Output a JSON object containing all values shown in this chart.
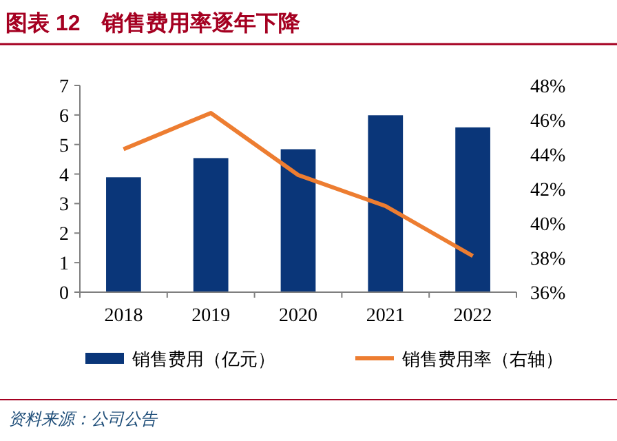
{
  "chart_data": {
    "type": "bar",
    "title": "图表 12　销售费用率逐年下降",
    "categories": [
      "2018",
      "2019",
      "2020",
      "2021",
      "2022"
    ],
    "series": [
      {
        "name": "销售费用（亿元）",
        "color": "#0a3679",
        "values": [
          3.89,
          4.54,
          4.84,
          5.99,
          5.58
        ]
      },
      {
        "name": "销售费用率（右轴）",
        "type": "line",
        "axis": "y2",
        "color": "#ed7d31",
        "values": [
          44.3,
          46.4,
          42.8,
          41.0,
          38.1
        ]
      }
    ],
    "ylim": [
      0,
      7
    ],
    "yticks": [
      0,
      1,
      2,
      3,
      4,
      5,
      6,
      7
    ],
    "y2lim": [
      36,
      48
    ],
    "y2ticks": [
      {
        "value": 36,
        "label": "36%"
      },
      {
        "value": 38,
        "label": "38%"
      },
      {
        "value": 40,
        "label": "40%"
      },
      {
        "value": 42,
        "label": "42%"
      },
      {
        "value": 44,
        "label": "44%"
      },
      {
        "value": 46,
        "label": "46%"
      },
      {
        "value": 48,
        "label": "48%"
      }
    ],
    "legend": "bottom",
    "grid": false,
    "annotations": [
      "资料来源：公司公告"
    ]
  }
}
